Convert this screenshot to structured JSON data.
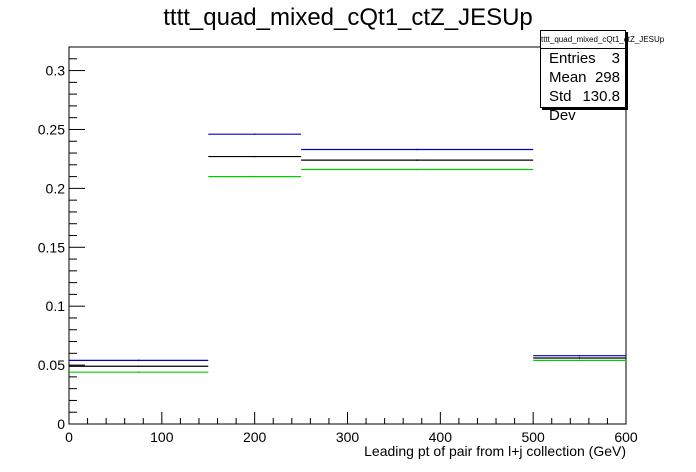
{
  "chart_data": {
    "type": "step-histogram",
    "title": "tttt_quad_mixed_cQt1_ctZ_JESUp",
    "xlabel": "Leading pt of pair from l+j collection (GeV)",
    "ylabel": "",
    "xlim": [
      0,
      600
    ],
    "ylim": [
      0,
      0.32
    ],
    "x_ticks": [
      "0",
      "100",
      "200",
      "300",
      "400",
      "500",
      "600"
    ],
    "y_ticks": [
      "0",
      "0.05",
      "0.1",
      "0.15",
      "0.2",
      "0.25",
      "0.3"
    ],
    "bin_edges": [
      0,
      150,
      250,
      500,
      600
    ],
    "series": [
      {
        "color": "#0000cc",
        "values": [
          0.054,
          0.246,
          0.233,
          0.058
        ]
      },
      {
        "color": "#000000",
        "values": [
          0.049,
          0.227,
          0.224,
          0.056
        ]
      },
      {
        "color": "#00cc00",
        "values": [
          0.044,
          0.21,
          0.216,
          0.054
        ]
      }
    ],
    "stats": {
      "name": "tttt_quad_mixed_cQt1_ctZ_JESUp",
      "entries_label": "Entries",
      "entries": "3",
      "mean_label": "Mean",
      "mean": "298",
      "stddev_label": "Std Dev",
      "stddev": "130.8"
    }
  }
}
